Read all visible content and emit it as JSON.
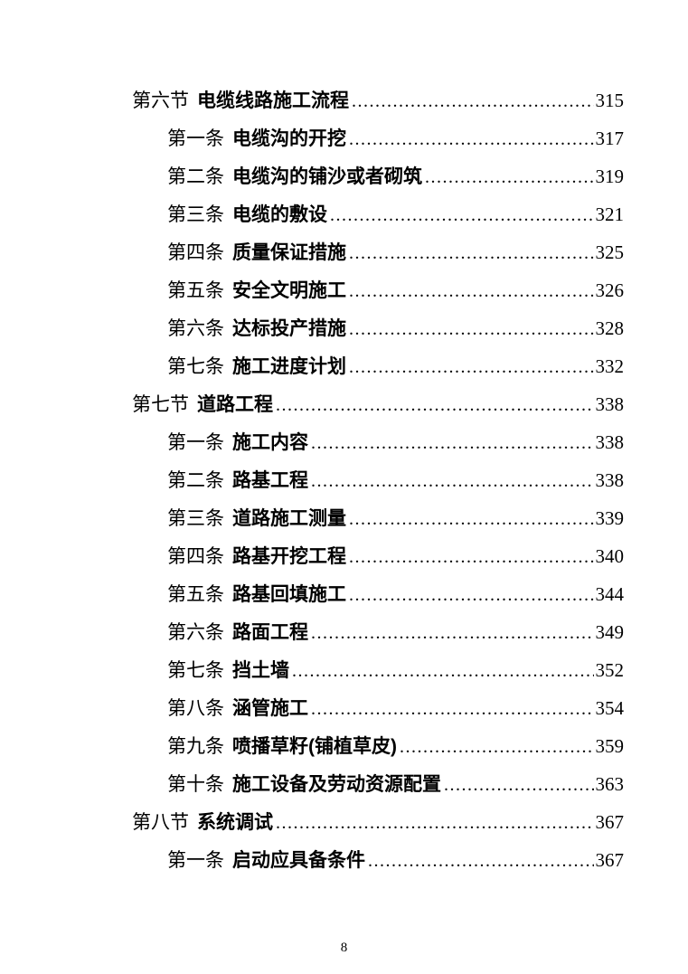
{
  "page": {
    "footer_page_number": "8"
  },
  "toc": {
    "entries": [
      {
        "level": 1,
        "prefix": "第六节",
        "title": "电缆线路施工流程",
        "page": "315"
      },
      {
        "level": 2,
        "prefix": "第一条",
        "title": "电缆沟的开挖",
        "page": "317"
      },
      {
        "level": 2,
        "prefix": "第二条",
        "title": "电缆沟的铺沙或者砌筑",
        "page": "319"
      },
      {
        "level": 2,
        "prefix": "第三条",
        "title": "电缆的敷设",
        "page": "321"
      },
      {
        "level": 2,
        "prefix": "第四条",
        "title": "质量保证措施",
        "page": "325"
      },
      {
        "level": 2,
        "prefix": "第五条",
        "title": "安全文明施工",
        "page": "326"
      },
      {
        "level": 2,
        "prefix": "第六条",
        "title": "达标投产措施",
        "page": "328"
      },
      {
        "level": 2,
        "prefix": "第七条",
        "title": "施工进度计划",
        "page": "332"
      },
      {
        "level": 1,
        "prefix": "第七节",
        "title": "道路工程",
        "page": "338"
      },
      {
        "level": 2,
        "prefix": "第一条",
        "title": "施工内容",
        "page": "338"
      },
      {
        "level": 2,
        "prefix": "第二条",
        "title": "路基工程",
        "page": "338"
      },
      {
        "level": 2,
        "prefix": "第三条",
        "title": "道路施工测量",
        "page": "339"
      },
      {
        "level": 2,
        "prefix": "第四条",
        "title": "路基开挖工程",
        "page": "340"
      },
      {
        "level": 2,
        "prefix": "第五条",
        "title": "路基回填施工",
        "page": "344"
      },
      {
        "level": 2,
        "prefix": "第六条",
        "title": "路面工程",
        "page": "349"
      },
      {
        "level": 2,
        "prefix": "第七条",
        "title": "挡土墙",
        "page": "352"
      },
      {
        "level": 2,
        "prefix": "第八条",
        "title": "涵管施工",
        "page": "354"
      },
      {
        "level": 2,
        "prefix": "第九条",
        "title": "喷播草籽(铺植草皮)",
        "page": "359"
      },
      {
        "level": 2,
        "prefix": "第十条",
        "title": "施工设备及劳动资源配置",
        "page": "363"
      },
      {
        "level": 1,
        "prefix": "第八节",
        "title": "系统调试",
        "page": "367"
      },
      {
        "level": 2,
        "prefix": "第一条",
        "title": "启动应具备条件",
        "page": "367"
      }
    ]
  }
}
